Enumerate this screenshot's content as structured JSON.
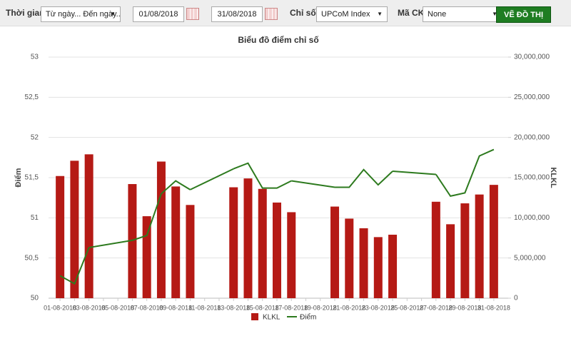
{
  "toolbar": {
    "time_label": "Thời gian",
    "time_select": "Từ ngày... Đến ngày...",
    "from_date": "01/08/2018",
    "to_date": "31/08/2018",
    "index_label": "Chỉ số",
    "index_select": "UPCoM Index",
    "code_label": "Mã CK",
    "code_select": "None",
    "button": "VẼ ĐỒ THỊ"
  },
  "chart_data": {
    "type": "bar",
    "title": "Biểu đồ điểm chỉ số",
    "y_label": "Điểm",
    "y2_label": "KLKL",
    "categories": [
      "01-08-2018",
      null,
      "03-08-2018",
      null,
      "05-08-2018",
      null,
      "07-08-2018",
      null,
      "09-08-2018",
      null,
      "11-08-2018",
      null,
      "13-08-2018",
      null,
      "15-08-2018",
      null,
      "17-08-2018",
      null,
      "19-08-2018",
      null,
      "21-08-2018",
      null,
      "23-08-2018",
      null,
      "25-08-2018",
      null,
      "27-08-2018",
      null,
      "29-08-2018",
      null,
      "31-08-2018"
    ],
    "series": [
      {
        "name": "KLKL",
        "type": "bar",
        "axis": "y2",
        "color": "#b51a15",
        "values": [
          15200000,
          17100000,
          17900000,
          null,
          null,
          14200000,
          10200000,
          17000000,
          13900000,
          11600000,
          null,
          null,
          13800000,
          14900000,
          13600000,
          11900000,
          10700000,
          null,
          null,
          11400000,
          9900000,
          8700000,
          7600000,
          7900000,
          null,
          null,
          12000000,
          9200000,
          11800000,
          12900000,
          14100000
        ]
      },
      {
        "name": "Điểm",
        "type": "line",
        "color": "#2d7a1e",
        "connect_gaps": true,
        "values": [
          50.28,
          50.18,
          50.63,
          null,
          null,
          50.72,
          50.78,
          51.3,
          51.46,
          51.35,
          null,
          null,
          51.61,
          51.68,
          51.37,
          51.37,
          51.46,
          null,
          null,
          51.38,
          51.38,
          51.6,
          51.41,
          51.58,
          null,
          null,
          51.54,
          51.27,
          51.31,
          51.77,
          51.85
        ]
      }
    ],
    "ylim": [
      50,
      53
    ],
    "yticks": [
      50,
      {
        "value": 50.5,
        "label": "50,5"
      },
      51,
      {
        "value": 51.5,
        "label": "51,5"
      },
      52,
      {
        "value": 52.5,
        "label": "52,5"
      },
      53
    ],
    "y2lim": [
      0,
      30000000
    ],
    "y2ticks": [
      0,
      {
        "value": 5000000,
        "label": "5,000,000"
      },
      {
        "value": 10000000,
        "label": "10,000,000"
      },
      {
        "value": 15000000,
        "label": "15,000,000"
      },
      {
        "value": 20000000,
        "label": "20,000,000"
      },
      {
        "value": 25000000,
        "label": "25,000,000"
      },
      {
        "value": 30000000,
        "label": "30,000,000"
      }
    ],
    "grid": true,
    "legend": "bottom"
  }
}
